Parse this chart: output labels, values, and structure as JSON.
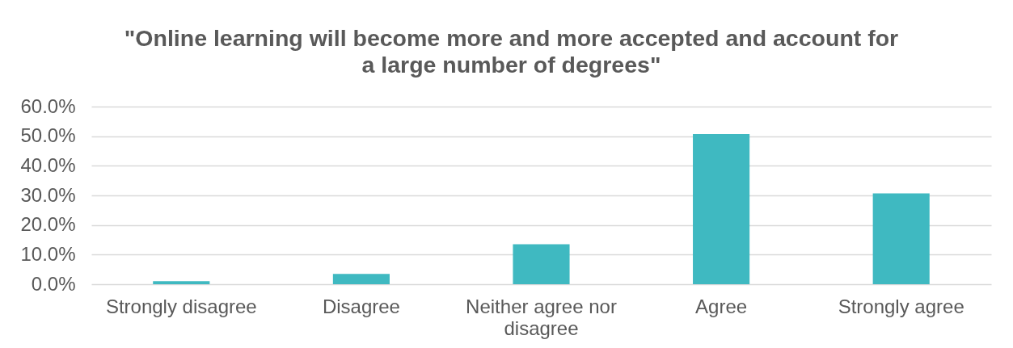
{
  "chart_data": {
    "type": "bar",
    "title": "\"Online learning will become more and more accepted and account for a large number of degrees\"",
    "categories": [
      "Strongly disagree",
      "Disagree",
      "Neither agree nor disagree",
      "Agree",
      "Strongly agree"
    ],
    "values": [
      1.0,
      3.5,
      13.5,
      50.7,
      30.7
    ],
    "color": "#3fb9c1",
    "ylim": [
      0,
      60
    ],
    "yticks": [
      {
        "value": 0,
        "label": "0.0%"
      },
      {
        "value": 10,
        "label": "10.0%"
      },
      {
        "value": 20,
        "label": "20.0%"
      },
      {
        "value": 30,
        "label": "30.0%"
      },
      {
        "value": 40,
        "label": "40.0%"
      },
      {
        "value": 50,
        "label": "50.0%"
      },
      {
        "value": 60,
        "label": "60.0%"
      }
    ],
    "grid": "y"
  }
}
